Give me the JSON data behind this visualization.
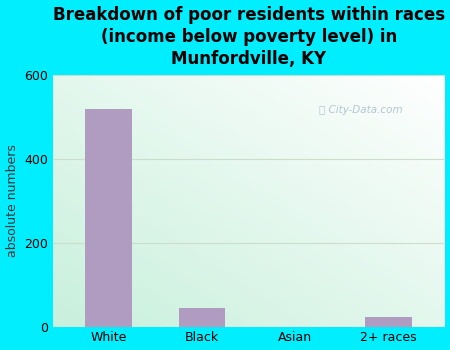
{
  "title": "Breakdown of poor residents within races\n(income below poverty level) in\nMunfordville, KY",
  "categories": [
    "White",
    "Black",
    "Asian",
    "2+ races"
  ],
  "values": [
    520,
    45,
    0,
    22
  ],
  "bar_color": "#b09cc0",
  "ylabel": "absolute numbers",
  "ylim": [
    0,
    600
  ],
  "yticks": [
    0,
    200,
    400,
    600
  ],
  "background_outer": "#00eeff",
  "title_fontsize": 12,
  "watermark": "City-Data.com",
  "grid_color": "#ccddcc",
  "tick_label_fontsize": 9,
  "ylabel_fontsize": 9
}
